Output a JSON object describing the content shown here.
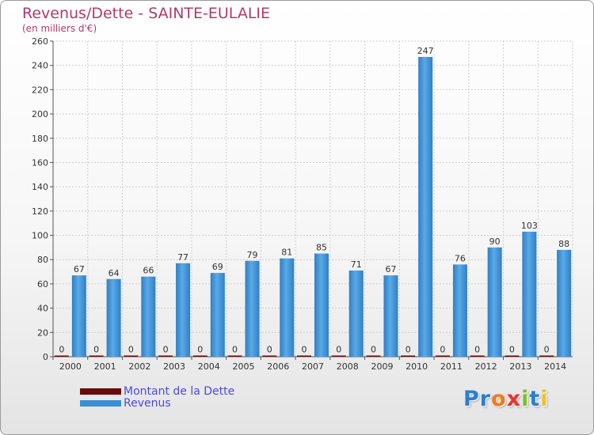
{
  "title": "Revenus/Dette - SAINTE-EULALIE",
  "subtitle": "(en milliers d'€)",
  "legend": [
    {
      "name": "Montant de la Dette",
      "color": "#6b0a0a"
    },
    {
      "name": "Revenus",
      "color": "#3a8fd6"
    }
  ],
  "logo": {
    "text": "Proxiti",
    "colors": [
      "#2a7fcf",
      "#2a7fcf",
      "#f07a1a",
      "#e8322a",
      "#7fbf2a",
      "#2a7fcf",
      "#f0c020"
    ]
  },
  "chart_data": {
    "type": "bar",
    "categories": [
      "2000",
      "2001",
      "2002",
      "2003",
      "2004",
      "2005",
      "2006",
      "2007",
      "2008",
      "2009",
      "2010",
      "2011",
      "2012",
      "2013",
      "2014"
    ],
    "series": [
      {
        "name": "Montant de la Dette",
        "color": "#6b0a0a",
        "values": [
          0,
          0,
          0,
          0,
          0,
          0,
          0,
          0,
          0,
          0,
          0,
          0,
          0,
          0,
          0
        ]
      },
      {
        "name": "Revenus",
        "color": "#3a8fd6",
        "values": [
          67,
          64,
          66,
          77,
          69,
          79,
          81,
          85,
          71,
          67,
          247,
          76,
          90,
          103,
          88
        ]
      }
    ],
    "ylim": [
      0,
      260
    ],
    "yticks": [
      0,
      20,
      40,
      60,
      80,
      100,
      120,
      140,
      160,
      180,
      200,
      220,
      240,
      260
    ],
    "grid": true,
    "legend_position": "bottom-left"
  }
}
